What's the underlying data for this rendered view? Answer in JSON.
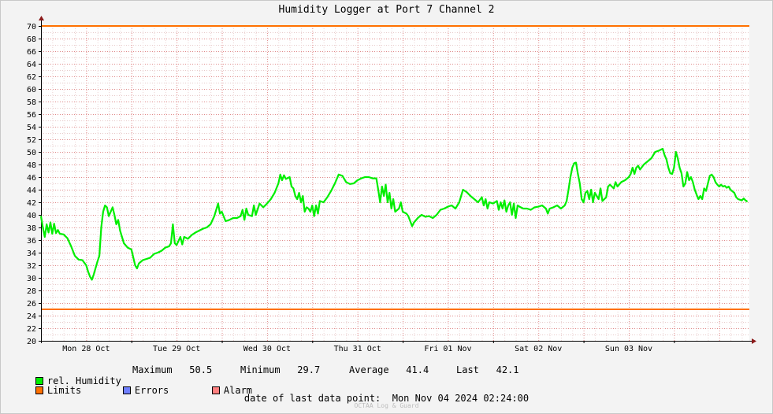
{
  "chart_data": {
    "type": "line",
    "title": "Humidity Logger at Port 7 Channel 2",
    "ylim": [
      20,
      70
    ],
    "yticks": [
      20,
      22,
      24,
      26,
      28,
      30,
      32,
      34,
      36,
      38,
      40,
      42,
      44,
      46,
      48,
      50,
      52,
      54,
      56,
      58,
      60,
      62,
      64,
      66,
      68,
      70
    ],
    "xlim_hours": [
      0,
      188
    ],
    "x_ticks": [
      {
        "label": "Mon 28 Oct"
      },
      {
        "label": "Tue 29 Oct"
      },
      {
        "label": "Wed 30 Oct"
      },
      {
        "label": "Thu 31 Oct"
      },
      {
        "label": "Fri 01 Nov"
      },
      {
        "label": "Sat 02 Nov"
      },
      {
        "label": "Sun 03 Nov"
      }
    ],
    "grid": true,
    "limits": {
      "upper": 70,
      "lower": 25,
      "color": "#ff7000"
    },
    "series": [
      {
        "name": "rel. Humidity",
        "color": "#00ee00",
        "points": [
          [
            0.0,
            39.8
          ],
          [
            0.5,
            38.0
          ],
          [
            1.0,
            36.5
          ],
          [
            1.5,
            38.5
          ],
          [
            2.0,
            37.2
          ],
          [
            2.5,
            38.8
          ],
          [
            3.0,
            37.0
          ],
          [
            3.5,
            38.6
          ],
          [
            4.0,
            37.1
          ],
          [
            4.5,
            37.6
          ],
          [
            5.0,
            37.0
          ],
          [
            6.0,
            36.9
          ],
          [
            7.0,
            36.3
          ],
          [
            8.0,
            35.0
          ],
          [
            9.0,
            33.5
          ],
          [
            10.0,
            32.9
          ],
          [
            11.0,
            32.8
          ],
          [
            12.0,
            32.0
          ],
          [
            12.5,
            31.0
          ],
          [
            13.0,
            30.2
          ],
          [
            13.5,
            29.7
          ],
          [
            14.0,
            30.5
          ],
          [
            15.0,
            32.6
          ],
          [
            15.5,
            33.5
          ],
          [
            16.0,
            38.0
          ],
          [
            16.5,
            40.5
          ],
          [
            17.0,
            41.5
          ],
          [
            17.5,
            41.2
          ],
          [
            18.0,
            39.8
          ],
          [
            18.5,
            40.5
          ],
          [
            19.0,
            41.2
          ],
          [
            19.5,
            40.0
          ],
          [
            20.0,
            38.5
          ],
          [
            20.5,
            39.2
          ],
          [
            21.0,
            37.5
          ],
          [
            22.0,
            35.5
          ],
          [
            23.0,
            34.8
          ],
          [
            24.0,
            34.5
          ],
          [
            24.5,
            33.2
          ],
          [
            25.0,
            32.0
          ],
          [
            25.5,
            31.5
          ],
          [
            26.0,
            32.3
          ],
          [
            27.0,
            32.8
          ],
          [
            28.0,
            33.0
          ],
          [
            29.0,
            33.2
          ],
          [
            30.0,
            33.8
          ],
          [
            31.0,
            34.0
          ],
          [
            32.0,
            34.3
          ],
          [
            33.0,
            34.8
          ],
          [
            34.0,
            35.0
          ],
          [
            34.5,
            35.5
          ],
          [
            35.0,
            38.5
          ],
          [
            35.5,
            35.5
          ],
          [
            36.0,
            35.2
          ],
          [
            37.0,
            36.5
          ],
          [
            37.5,
            35.3
          ],
          [
            38.0,
            36.5
          ],
          [
            39.0,
            36.2
          ],
          [
            40.0,
            36.8
          ],
          [
            41.0,
            37.2
          ],
          [
            42.0,
            37.5
          ],
          [
            43.0,
            37.8
          ],
          [
            44.0,
            38.0
          ],
          [
            45.0,
            38.5
          ],
          [
            46.0,
            39.8
          ],
          [
            47.0,
            41.8
          ],
          [
            47.5,
            40.2
          ],
          [
            48.0,
            40.5
          ],
          [
            49.0,
            39.0
          ],
          [
            50.0,
            39.2
          ],
          [
            51.0,
            39.5
          ],
          [
            52.0,
            39.5
          ],
          [
            53.0,
            39.8
          ],
          [
            53.5,
            40.8
          ],
          [
            54.0,
            39.2
          ],
          [
            54.5,
            41.0
          ],
          [
            55.0,
            40.0
          ],
          [
            56.0,
            39.8
          ],
          [
            56.5,
            41.5
          ],
          [
            57.0,
            40.0
          ],
          [
            58.0,
            41.8
          ],
          [
            59.0,
            41.2
          ],
          [
            60.0,
            41.8
          ],
          [
            61.0,
            42.5
          ],
          [
            62.0,
            43.5
          ],
          [
            63.0,
            45.0
          ],
          [
            63.5,
            46.4
          ],
          [
            64.0,
            45.5
          ],
          [
            64.5,
            46.3
          ],
          [
            65.0,
            45.7
          ],
          [
            66.0,
            46.0
          ],
          [
            66.5,
            44.5
          ],
          [
            67.0,
            44.2
          ],
          [
            67.5,
            43.0
          ],
          [
            68.0,
            42.5
          ],
          [
            68.5,
            43.5
          ],
          [
            69.0,
            42.0
          ],
          [
            69.5,
            43.0
          ],
          [
            70.0,
            40.5
          ],
          [
            70.5,
            41.2
          ],
          [
            71.0,
            41.0
          ],
          [
            71.5,
            40.5
          ],
          [
            72.0,
            41.5
          ],
          [
            72.5,
            39.8
          ],
          [
            73.0,
            41.5
          ],
          [
            73.5,
            40.2
          ],
          [
            74.0,
            42.2
          ],
          [
            75.0,
            42.0
          ],
          [
            76.0,
            42.8
          ],
          [
            77.0,
            43.8
          ],
          [
            78.0,
            45.0
          ],
          [
            79.0,
            46.4
          ],
          [
            80.0,
            46.2
          ],
          [
            81.0,
            45.2
          ],
          [
            82.0,
            44.9
          ],
          [
            83.0,
            45.0
          ],
          [
            84.0,
            45.5
          ],
          [
            85.0,
            45.8
          ],
          [
            86.0,
            46.0
          ],
          [
            87.0,
            46.0
          ],
          [
            88.0,
            45.8
          ],
          [
            89.0,
            45.8
          ],
          [
            89.5,
            44.0
          ],
          [
            90.0,
            42.0
          ],
          [
            90.5,
            44.5
          ],
          [
            91.0,
            43.0
          ],
          [
            91.5,
            44.8
          ],
          [
            92.0,
            42.0
          ],
          [
            92.5,
            43.5
          ],
          [
            93.0,
            41.0
          ],
          [
            93.5,
            42.5
          ],
          [
            94.0,
            40.5
          ],
          [
            95.0,
            41.0
          ],
          [
            95.5,
            42.0
          ],
          [
            96.0,
            40.5
          ],
          [
            97.0,
            40.2
          ],
          [
            97.5,
            39.8
          ],
          [
            98.0,
            39.0
          ],
          [
            98.5,
            38.2
          ],
          [
            99.0,
            38.8
          ],
          [
            100.0,
            39.5
          ],
          [
            101.0,
            40.0
          ],
          [
            102.0,
            39.7
          ],
          [
            103.0,
            39.8
          ],
          [
            104.0,
            39.5
          ],
          [
            105.0,
            40.0
          ],
          [
            106.0,
            40.8
          ],
          [
            107.0,
            41.0
          ],
          [
            108.0,
            41.3
          ],
          [
            109.0,
            41.5
          ],
          [
            110.0,
            41.0
          ],
          [
            111.0,
            42.0
          ],
          [
            112.0,
            44.0
          ],
          [
            113.0,
            43.6
          ],
          [
            114.0,
            43.0
          ],
          [
            115.0,
            42.5
          ],
          [
            116.0,
            42.0
          ],
          [
            117.0,
            42.8
          ],
          [
            117.5,
            41.5
          ],
          [
            118.0,
            42.5
          ],
          [
            118.5,
            41.0
          ],
          [
            119.0,
            42.0
          ],
          [
            120.0,
            41.8
          ],
          [
            121.0,
            42.2
          ],
          [
            121.5,
            40.8
          ],
          [
            122.0,
            42.0
          ],
          [
            122.5,
            41.0
          ],
          [
            123.0,
            42.3
          ],
          [
            123.5,
            40.5
          ],
          [
            124.0,
            41.5
          ],
          [
            124.5,
            42.0
          ],
          [
            125.0,
            40.0
          ],
          [
            125.5,
            41.8
          ],
          [
            126.0,
            39.5
          ],
          [
            126.5,
            41.5
          ],
          [
            127.0,
            41.3
          ],
          [
            128.0,
            41.0
          ],
          [
            129.0,
            41.0
          ],
          [
            130.0,
            40.8
          ],
          [
            131.0,
            41.2
          ],
          [
            132.0,
            41.3
          ],
          [
            133.0,
            41.5
          ],
          [
            134.0,
            41.0
          ],
          [
            134.5,
            40.2
          ],
          [
            135.0,
            41.0
          ],
          [
            136.0,
            41.2
          ],
          [
            137.0,
            41.5
          ],
          [
            138.0,
            41.0
          ],
          [
            139.0,
            41.5
          ],
          [
            139.5,
            42.2
          ],
          [
            140.0,
            44.0
          ],
          [
            140.5,
            46.0
          ],
          [
            141.0,
            47.5
          ],
          [
            141.5,
            48.2
          ],
          [
            142.0,
            48.3
          ],
          [
            142.5,
            46.5
          ],
          [
            143.0,
            45.0
          ],
          [
            143.5,
            42.5
          ],
          [
            144.0,
            42.0
          ],
          [
            144.5,
            43.5
          ],
          [
            145.0,
            43.8
          ],
          [
            145.5,
            42.5
          ],
          [
            146.0,
            44.0
          ],
          [
            146.5,
            42.0
          ],
          [
            147.0,
            43.5
          ],
          [
            147.5,
            43.0
          ],
          [
            148.0,
            42.5
          ],
          [
            148.5,
            44.2
          ],
          [
            149.0,
            42.2
          ],
          [
            150.0,
            42.8
          ],
          [
            150.5,
            44.5
          ],
          [
            151.0,
            44.8
          ],
          [
            152.0,
            44.2
          ],
          [
            152.5,
            45.2
          ],
          [
            153.0,
            44.5
          ],
          [
            154.0,
            45.2
          ],
          [
            155.0,
            45.5
          ],
          [
            156.0,
            46.0
          ],
          [
            156.5,
            46.5
          ],
          [
            157.0,
            47.5
          ],
          [
            157.5,
            46.5
          ],
          [
            158.0,
            47.5
          ],
          [
            158.5,
            47.8
          ],
          [
            159.0,
            47.2
          ],
          [
            160.0,
            48.0
          ],
          [
            161.0,
            48.5
          ],
          [
            162.0,
            49.0
          ],
          [
            163.0,
            50.0
          ],
          [
            164.0,
            50.2
          ],
          [
            165.0,
            50.5
          ],
          [
            165.5,
            49.5
          ],
          [
            166.0,
            48.8
          ],
          [
            166.5,
            47.5
          ],
          [
            167.0,
            46.6
          ],
          [
            167.5,
            46.5
          ],
          [
            168.0,
            47.5
          ],
          [
            168.5,
            50.0
          ],
          [
            169.0,
            49.0
          ],
          [
            169.5,
            47.5
          ],
          [
            170.0,
            46.6
          ],
          [
            170.5,
            44.5
          ],
          [
            171.0,
            45.0
          ],
          [
            171.5,
            46.8
          ],
          [
            172.0,
            45.5
          ],
          [
            172.5,
            46.0
          ],
          [
            173.0,
            45.2
          ],
          [
            173.5,
            44.0
          ],
          [
            174.0,
            43.2
          ],
          [
            174.5,
            42.5
          ],
          [
            175.0,
            43.0
          ],
          [
            175.5,
            42.5
          ],
          [
            176.0,
            44.2
          ],
          [
            176.5,
            43.8
          ],
          [
            177.0,
            45.0
          ],
          [
            177.5,
            46.2
          ],
          [
            178.0,
            46.4
          ],
          [
            178.5,
            46.0
          ],
          [
            179.0,
            45.2
          ],
          [
            179.5,
            44.8
          ],
          [
            180.0,
            44.5
          ],
          [
            180.5,
            44.8
          ],
          [
            181.0,
            44.5
          ],
          [
            181.5,
            44.6
          ],
          [
            182.0,
            44.3
          ],
          [
            182.5,
            44.5
          ],
          [
            183.0,
            44.0
          ],
          [
            184.0,
            43.5
          ],
          [
            184.5,
            42.8
          ],
          [
            185.0,
            42.5
          ],
          [
            186.0,
            42.3
          ],
          [
            186.5,
            42.6
          ],
          [
            187.0,
            42.3
          ],
          [
            187.5,
            42.1
          ]
        ]
      }
    ]
  },
  "legend": {
    "humidity": {
      "label": "rel. Humidity",
      "color": "#00ee00"
    },
    "limits": {
      "label": "Limits",
      "color": "#ff7000"
    },
    "errors": {
      "label": "Errors",
      "color": "#6f7fff"
    },
    "alarm": {
      "label": "Alarm",
      "color": "#ff7f7f"
    }
  },
  "stats": {
    "max_label": "Maximum",
    "max_value": "50.5",
    "min_label": "Minimum",
    "min_value": "29.7",
    "avg_label": "Average",
    "avg_value": "41.4",
    "last_label": "Last",
    "last_value": "42.1"
  },
  "footer": {
    "last_data_point_label": "date of last data point:",
    "last_data_point_value": "Mon Nov 04 2024 02:24:00",
    "watermark": "OCTAA Log & Guard"
  }
}
